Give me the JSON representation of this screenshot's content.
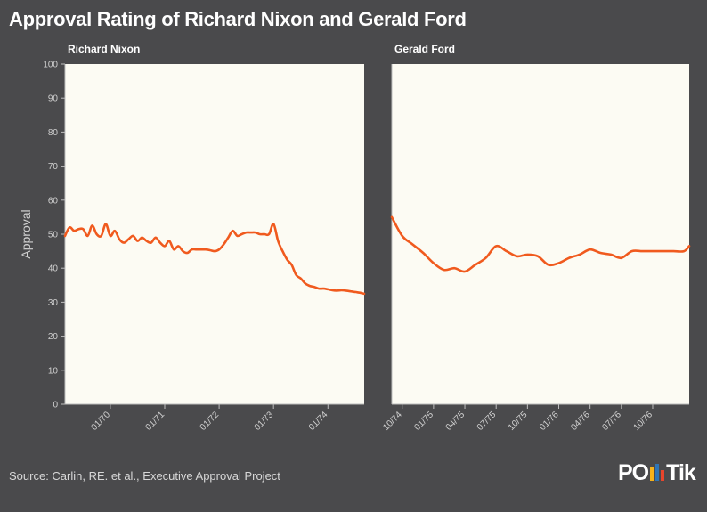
{
  "title": "Approval Rating of Richard Nixon and Gerald Ford",
  "source": "Source: Carlin, RE. et al., Executive Approval Project",
  "logo": {
    "text_left": "PO",
    "text_right": "Tik",
    "bar_colors": [
      "#f6b21a",
      "#2f75b6",
      "#e8452c"
    ]
  },
  "colors": {
    "background": "#4a4a4c",
    "panel": "#fcfbf3",
    "line": "#f05a1e"
  },
  "chart_data": [
    {
      "type": "line",
      "title": "Richard Nixon",
      "ylabel": "Approval",
      "ylim": [
        0,
        100
      ],
      "yticks": [
        0,
        10,
        20,
        30,
        40,
        50,
        60,
        70,
        80,
        90,
        100
      ],
      "xlim": [
        0,
        66
      ],
      "xticks": [
        {
          "pos": 10,
          "label": "01/70"
        },
        {
          "pos": 22,
          "label": "01/71"
        },
        {
          "pos": 34,
          "label": "01/72"
        },
        {
          "pos": 46,
          "label": "01/73"
        },
        {
          "pos": 58,
          "label": "01/74"
        }
      ],
      "x": [
        0,
        1,
        2,
        3,
        4,
        5,
        6,
        7,
        8,
        9,
        10,
        11,
        12,
        13,
        14,
        15,
        16,
        17,
        18,
        19,
        20,
        21,
        22,
        23,
        24,
        25,
        26,
        27,
        28,
        29,
        30,
        31,
        32,
        33,
        34,
        35,
        36,
        37,
        38,
        39,
        40,
        41,
        42,
        43,
        44,
        45,
        46,
        47,
        48,
        49,
        50,
        51,
        52,
        53,
        54,
        55,
        56,
        57,
        58,
        59,
        60,
        61,
        62,
        63,
        64,
        65,
        66
      ],
      "values": [
        49.5,
        52,
        51,
        51.5,
        51.5,
        49.5,
        52.5,
        50,
        49.5,
        53,
        49.5,
        51,
        48.5,
        47.5,
        48.5,
        49.5,
        48,
        49,
        48,
        47.5,
        49,
        47.5,
        46.5,
        48,
        45.5,
        46.5,
        45,
        44.5,
        45.5,
        45.5,
        45.5,
        45.5,
        45.3,
        45,
        45.5,
        47,
        49,
        51,
        49.5,
        50,
        50.5,
        50.5,
        50.5,
        50,
        50,
        50,
        53,
        48,
        45,
        42.5,
        41,
        38,
        37,
        35.5,
        34.8,
        34.5,
        34,
        34,
        33.8,
        33.5,
        33.4,
        33.5,
        33.4,
        33.2,
        33,
        32.8,
        32.5
      ]
    },
    {
      "type": "line",
      "title": "Gerald Ford",
      "ylim": [
        0,
        100
      ],
      "xlim": [
        0,
        28.5
      ],
      "xticks": [
        {
          "pos": 1,
          "label": "10/74"
        },
        {
          "pos": 4,
          "label": "01/75"
        },
        {
          "pos": 7,
          "label": "04/75"
        },
        {
          "pos": 10,
          "label": "07/75"
        },
        {
          "pos": 13,
          "label": "10/75"
        },
        {
          "pos": 16,
          "label": "01/76"
        },
        {
          "pos": 19,
          "label": "04/76"
        },
        {
          "pos": 22,
          "label": "07/76"
        },
        {
          "pos": 25,
          "label": "10/76"
        }
      ],
      "x": [
        0,
        1,
        2,
        3,
        4,
        5,
        6,
        7,
        8,
        9,
        10,
        11,
        12,
        13,
        14,
        15,
        16,
        17,
        18,
        19,
        20,
        21,
        22,
        23,
        24,
        25,
        26,
        27,
        28,
        28.5
      ],
      "values": [
        55,
        49.5,
        47,
        44.5,
        41.5,
        39.5,
        40,
        39,
        41,
        43,
        46.5,
        45,
        43.5,
        44,
        43.5,
        41,
        41.5,
        43,
        44,
        45.5,
        44.5,
        44,
        43,
        45,
        45,
        45,
        45,
        45,
        45,
        46.5
      ]
    }
  ]
}
